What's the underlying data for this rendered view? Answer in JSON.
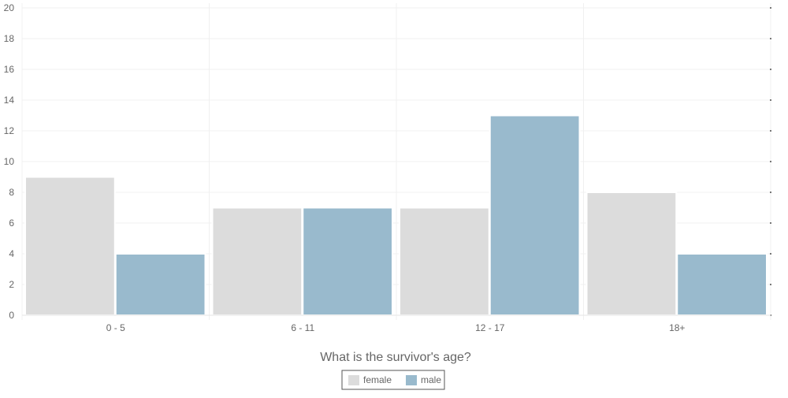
{
  "colors": {
    "female": "#dcdcdc",
    "male": "#99bacd",
    "grid": "#f0f0f0",
    "legend_border": "#555555",
    "text": "#666666"
  },
  "chart_data": {
    "type": "bar",
    "xlabel": "What is the survivor's age?",
    "ylabel": "",
    "categories": [
      "0 - 5",
      "6 - 11",
      "12 - 17",
      "18+"
    ],
    "series": [
      {
        "name": "female",
        "values": [
          9,
          7,
          7,
          8
        ]
      },
      {
        "name": "male",
        "values": [
          4,
          7,
          13,
          4
        ]
      }
    ],
    "ylim": [
      0,
      20
    ],
    "yticks": [
      0,
      2,
      4,
      6,
      8,
      10,
      12,
      14,
      16,
      18,
      20
    ],
    "grid": true,
    "legend_position": "bottom"
  }
}
